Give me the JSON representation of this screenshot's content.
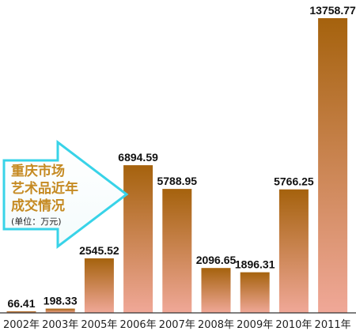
{
  "chart_data": {
    "type": "bar",
    "title_lines": [
      "重庆市场",
      "艺术品近年",
      "成交情况"
    ],
    "unit": "(单位：万元)",
    "categories": [
      "2002年",
      "2003年",
      "2005年",
      "2006年",
      "2007年",
      "2008年",
      "2009年",
      "2010年",
      "2011年"
    ],
    "values": [
      66.41,
      198.33,
      2545.52,
      6894.59,
      5788.95,
      2096.65,
      1896.31,
      5766.25,
      13758.77
    ],
    "value_labels": [
      "66.41",
      "198.33",
      "2545.52",
      "6894.59",
      "5788.95",
      "2096.65",
      "1896.31",
      "5766.25",
      "13758.77"
    ],
    "ylim": [
      0,
      13758.77
    ],
    "grid": false,
    "legend": "none",
    "colors": {
      "bar_top": "#a5620d",
      "bar_bottom": "#f0a898",
      "title": "#c58a22",
      "callout_border": "#38d3e8",
      "axis": "#333333"
    }
  }
}
